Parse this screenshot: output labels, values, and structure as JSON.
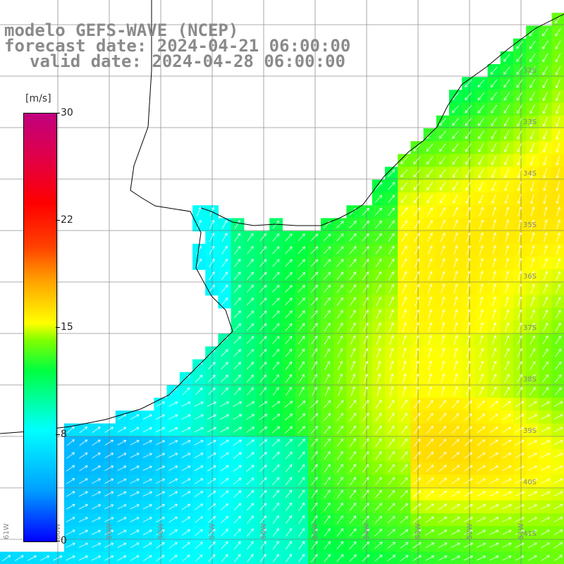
{
  "header": {
    "line1": "modelo GEFS-WAVE (NCEP)",
    "line2": "forecast date: 2024-04-21 06:00:00",
    "line3": "valid date: 2024-04-28 06:00:00"
  },
  "colorbar": {
    "unit": "[m/s]",
    "ticks": [
      "30",
      "22",
      "15",
      "8",
      "0"
    ],
    "tick_values": [
      30,
      22,
      15,
      8,
      0
    ],
    "min": 0,
    "max": 30
  },
  "map": {
    "lat_labels": [
      "32S",
      "33S",
      "34S",
      "35S",
      "36S",
      "37S",
      "38S",
      "39S",
      "40S",
      "41S"
    ],
    "lon_labels": [
      "61W",
      "60W",
      "59W",
      "58W",
      "57W",
      "56W",
      "55W",
      "54W",
      "53W",
      "52W",
      "51W"
    ],
    "colors": {
      "land": "#ffffff",
      "coast": "#000000",
      "grid": "#777777",
      "arrows": "#ffffff"
    }
  }
}
